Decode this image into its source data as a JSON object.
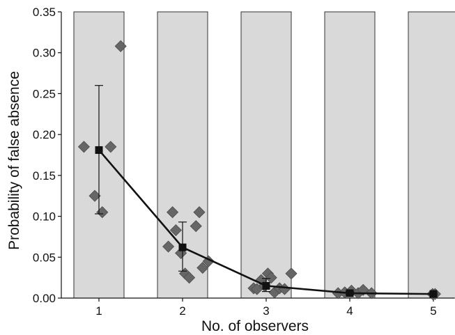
{
  "chart_data": {
    "type": "scatter",
    "title": "",
    "xlabel": "No. of observers",
    "ylabel": "Probability of false absence",
    "xlim": [
      0.55,
      5.25
    ],
    "ylim": [
      0,
      0.35
    ],
    "x_ticks": [
      "1",
      "2",
      "3",
      "4",
      "5"
    ],
    "y_ticks": [
      "0.00",
      "0.05",
      "0.10",
      "0.15",
      "0.20",
      "0.25",
      "0.30",
      "0.35"
    ],
    "grid": false,
    "legend": "none",
    "background_bars": {
      "categories": [
        1,
        2,
        3,
        4,
        5
      ],
      "value": 0.35,
      "color": "#d9d9d9"
    },
    "series": [
      {
        "kind": "points",
        "marker": "diamond",
        "color": "#666666",
        "points": [
          {
            "x": 0.82,
            "y": 0.185
          },
          {
            "x": 0.95,
            "y": 0.125
          },
          {
            "x": 1.04,
            "y": 0.105
          },
          {
            "x": 1.14,
            "y": 0.185
          },
          {
            "x": 1.26,
            "y": 0.308
          },
          {
            "x": 1.83,
            "y": 0.063
          },
          {
            "x": 1.88,
            "y": 0.105
          },
          {
            "x": 1.92,
            "y": 0.083
          },
          {
            "x": 1.98,
            "y": 0.055
          },
          {
            "x": 2.03,
            "y": 0.03
          },
          {
            "x": 2.08,
            "y": 0.025
          },
          {
            "x": 2.16,
            "y": 0.088
          },
          {
            "x": 2.2,
            "y": 0.105
          },
          {
            "x": 2.24,
            "y": 0.037
          },
          {
            "x": 2.31,
            "y": 0.045
          },
          {
            "x": 2.85,
            "y": 0.012
          },
          {
            "x": 2.89,
            "y": 0.011
          },
          {
            "x": 2.94,
            "y": 0.022
          },
          {
            "x": 2.98,
            "y": 0.015
          },
          {
            "x": 3.02,
            "y": 0.03
          },
          {
            "x": 3.06,
            "y": 0.025
          },
          {
            "x": 3.1,
            "y": 0.007
          },
          {
            "x": 3.16,
            "y": 0.012
          },
          {
            "x": 3.22,
            "y": 0.011
          },
          {
            "x": 3.3,
            "y": 0.03
          },
          {
            "x": 3.86,
            "y": 0.006
          },
          {
            "x": 3.94,
            "y": 0.007
          },
          {
            "x": 4.02,
            "y": 0.009
          },
          {
            "x": 4.1,
            "y": 0.006
          },
          {
            "x": 4.16,
            "y": 0.01
          },
          {
            "x": 4.26,
            "y": 0.006
          },
          {
            "x": 4.99,
            "y": 0.005
          },
          {
            "x": 5.02,
            "y": 0.005
          }
        ]
      },
      {
        "kind": "mean",
        "marker": "square",
        "color": "#111111",
        "x": [
          1,
          2,
          3,
          4,
          5
        ],
        "y": [
          0.181,
          0.062,
          0.015,
          0.006,
          0.005
        ],
        "error_low": [
          0.103,
          0.033,
          0.008,
          0.004,
          0.004
        ],
        "error_high": [
          0.26,
          0.093,
          0.024,
          0.008,
          0.006
        ]
      }
    ]
  }
}
